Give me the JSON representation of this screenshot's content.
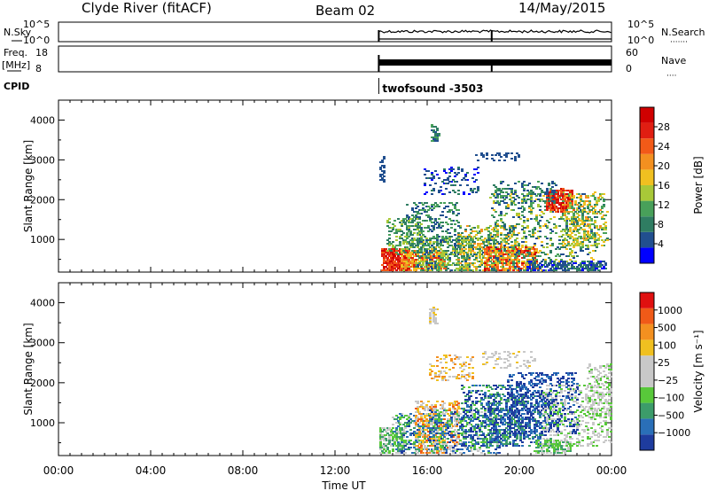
{
  "header": {
    "station": "Clyde River (fitACF)",
    "beam": "Beam 02",
    "date": "14/May/2015"
  },
  "chart_data": [
    {
      "type": "line",
      "panel": "noise",
      "left_label": "N.Sky",
      "right_label": "N.Search",
      "left_ticks": [
        "10^5",
        "10^0"
      ],
      "right_ticks": [
        "10^5",
        "10^0"
      ],
      "data_start_hour": 13.9,
      "data_end_hour": 24.0,
      "gap_hour": 18.8
    },
    {
      "type": "line",
      "panel": "freq-nave",
      "left_label_lines": [
        "Freq.",
        "[MHz]"
      ],
      "right_label": "Nave",
      "left_ticks": [
        18,
        8
      ],
      "right_ticks": [
        60,
        0
      ],
      "data_start_hour": 13.9,
      "data_end_hour": 24.0,
      "gap_hour": 18.8
    },
    {
      "type": "table",
      "panel": "cpid",
      "label": "CPID",
      "program": "twofsound -3503",
      "start_hour": 13.9
    },
    {
      "type": "heatmap",
      "panel": "power",
      "ylabel": "Slant Range [km]",
      "yticks": [
        1000,
        2000,
        3000,
        4000
      ],
      "ylim": [
        180,
        4500
      ],
      "colorbar_label": "Power [dB]",
      "colorbar_ticks": [
        "28",
        "24",
        "20",
        "16",
        "12",
        "8",
        "4"
      ],
      "colorbar_colors": [
        "#0000ff",
        "#214f8f",
        "#2f7d62",
        "#48a05a",
        "#a8c838",
        "#f0c020",
        "#f39020",
        "#f25a18",
        "#e01e12",
        "#d00000"
      ],
      "data_start_hour": 13.9
    },
    {
      "type": "heatmap",
      "panel": "velocity",
      "ylabel": "Slant Range [km]",
      "yticks": [
        1000,
        2000,
        3000,
        4000
      ],
      "ylim": [
        180,
        4500
      ],
      "colorbar_label": "Velocity [m s⁻¹]",
      "colorbar_ticks": [
        "1000",
        "500",
        "100",
        "25",
        "−25",
        "−100",
        "−500",
        "−1000"
      ],
      "colorbar_colors": [
        "#1e3c9e",
        "#2a6fb8",
        "#3c9c6a",
        "#58c83a",
        "#c8c8c8",
        "#c8c8c8",
        "#f0c020",
        "#f39020",
        "#f05a18",
        "#e01010"
      ],
      "data_start_hour": 13.9
    }
  ],
  "time_axis": {
    "label": "Time UT",
    "ticks": [
      "00:00",
      "04:00",
      "08:00",
      "12:00",
      "16:00",
      "20:00",
      "00:00"
    ]
  }
}
